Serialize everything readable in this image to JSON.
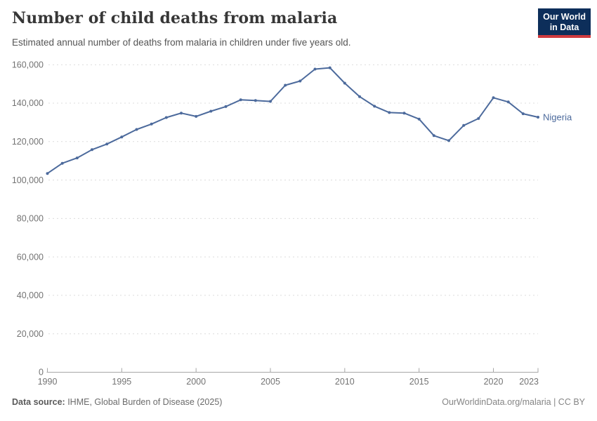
{
  "header": {
    "title": "Number of child deaths from malaria",
    "subtitle": "Estimated annual number of deaths from malaria in children under five years old.",
    "logo": {
      "line1": "Our World",
      "line2": "in Data",
      "bg_color": "#0d2e5a",
      "bar_color": "#cf3a3e"
    }
  },
  "chart_data": {
    "type": "line",
    "title": "Number of child deaths from malaria",
    "xlabel": "",
    "ylabel": "",
    "xlim": [
      1990,
      2023
    ],
    "ylim": [
      0,
      160000
    ],
    "grid": "horizontal-dashed",
    "legend_position": "end-of-line-label",
    "xticks": [
      1990,
      1995,
      2000,
      2005,
      2010,
      2015,
      2020,
      2023
    ],
    "xtick_labels": [
      "1990",
      "1995",
      "2000",
      "2005",
      "2010",
      "2015",
      "2020",
      "2023"
    ],
    "yticks": [
      0,
      20000,
      40000,
      60000,
      80000,
      100000,
      120000,
      140000,
      160000
    ],
    "ytick_labels": [
      "0",
      "20,000",
      "40,000",
      "60,000",
      "80,000",
      "100,000",
      "120,000",
      "140,000",
      "160,000"
    ],
    "x": [
      1990,
      1991,
      1992,
      1993,
      1994,
      1995,
      1996,
      1997,
      1998,
      1999,
      2000,
      2001,
      2002,
      2003,
      2004,
      2005,
      2006,
      2007,
      2008,
      2009,
      2010,
      2011,
      2012,
      2013,
      2014,
      2015,
      2016,
      2017,
      2018,
      2019,
      2020,
      2021,
      2022,
      2023
    ],
    "series": [
      {
        "name": "Nigeria",
        "color": "#4C6A9C",
        "values": [
          103400,
          108700,
          111500,
          115800,
          118700,
          122400,
          126300,
          129100,
          132500,
          134800,
          133100,
          135800,
          138200,
          141700,
          141400,
          140900,
          149300,
          151500,
          157700,
          158400,
          150400,
          143400,
          138400,
          135100,
          134800,
          131700,
          123100,
          120500,
          128400,
          132000,
          142800,
          140600,
          134500,
          132700
        ]
      }
    ]
  },
  "colors": {
    "line": "#4C6A9C",
    "grid": "#dcdcdc",
    "axis": "#a6a6a6",
    "tick_label": "#737373"
  },
  "footer": {
    "source_label": "Data source:",
    "source_text": " IHME, Global Burden of Disease (2025)",
    "right_text": "OurWorldinData.org/malaria | CC BY"
  }
}
